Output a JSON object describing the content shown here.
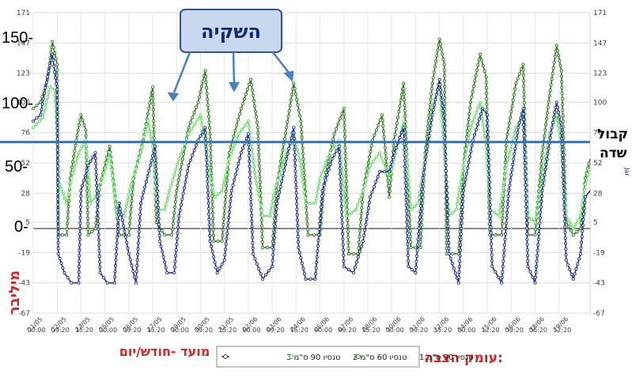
{
  "callout": {
    "text": "השקיה"
  },
  "field_capacity": {
    "line1": "קבול",
    "line2": "שדה",
    "value": 68.5,
    "color": "#3c73b0"
  },
  "annotations": {
    "unit_label": "מיליבר",
    "time_label": "מועד -חודש/יום",
    "depth_label": "עומק הצבה:"
  },
  "big_ticks": [
    "150-",
    "100-",
    "50-",
    "0-"
  ],
  "right_axis_cut": "Jar",
  "chart_data": {
    "type": "line",
    "title": "",
    "xlabel": "מועד -חודש/יום",
    "ylabel": "מיליבר",
    "ylim": [
      -67,
      171
    ],
    "y_ticks": [
      171,
      147,
      123,
      100,
      76,
      52,
      28,
      5,
      -19,
      -43,
      -67
    ],
    "x_tick_labels": [
      [
        "21/05",
        "00:00"
      ],
      [
        "22/05",
        "09:20"
      ],
      [
        "23/05",
        "15:20"
      ],
      [
        "25/05",
        "00:00"
      ],
      [
        "26/05",
        "09:20"
      ],
      [
        "27/05",
        "15:20"
      ],
      [
        "29/05",
        "00:00"
      ],
      [
        "30/05",
        "09:20"
      ],
      [
        "31/05",
        "15:20"
      ],
      [
        "02/06",
        "00:00"
      ],
      [
        "03/06",
        "09:20"
      ],
      [
        "04/06",
        "15:20"
      ],
      [
        "06/06",
        "00:00"
      ],
      [
        "07/06",
        "09:20"
      ],
      [
        "08/06",
        "15:20"
      ],
      [
        "10/06",
        "00:00"
      ],
      [
        "11/06",
        "09:20"
      ],
      [
        "12/06",
        "15:20"
      ],
      [
        "14/06",
        "00:00"
      ],
      [
        "15/06",
        "12:20"
      ],
      [
        "16/06",
        "09:20"
      ],
      [
        "18/06",
        "06:20"
      ],
      [
        "19/06",
        "12:20"
      ]
    ],
    "x_index_range": [
      0,
      22
    ],
    "series": [
      {
        "name": "טנסיו 30 ס\"מ 1",
        "color": "#2e7d1e",
        "points": [
          [
            0,
            95
          ],
          [
            0.3,
            100
          ],
          [
            0.6,
            118
          ],
          [
            0.8,
            148
          ],
          [
            1.0,
            130
          ],
          [
            1.05,
            -5
          ],
          [
            1.4,
            -5
          ],
          [
            1.55,
            40
          ],
          [
            1.8,
            70
          ],
          [
            2.0,
            90
          ],
          [
            2.2,
            78
          ],
          [
            2.3,
            -5
          ],
          [
            2.6,
            0
          ],
          [
            2.8,
            35
          ],
          [
            3.2,
            65
          ],
          [
            3.6,
            -5
          ],
          [
            4.0,
            -5
          ],
          [
            4.2,
            40
          ],
          [
            4.6,
            70
          ],
          [
            5.0,
            112
          ],
          [
            5.15,
            5
          ],
          [
            5.5,
            -5
          ],
          [
            5.8,
            -5
          ],
          [
            6.0,
            30
          ],
          [
            6.5,
            80
          ],
          [
            6.9,
            100
          ],
          [
            7.2,
            125
          ],
          [
            7.4,
            75
          ],
          [
            7.55,
            -10
          ],
          [
            7.9,
            -10
          ],
          [
            8.2,
            60
          ],
          [
            8.7,
            95
          ],
          [
            9.1,
            118
          ],
          [
            9.4,
            80
          ],
          [
            9.6,
            -15
          ],
          [
            10.0,
            -15
          ],
          [
            10.2,
            35
          ],
          [
            10.6,
            80
          ],
          [
            10.9,
            115
          ],
          [
            11.2,
            85
          ],
          [
            11.5,
            -5
          ],
          [
            12.0,
            -5
          ],
          [
            12.2,
            40
          ],
          [
            12.6,
            75
          ],
          [
            13.0,
            95
          ],
          [
            13.2,
            -20
          ],
          [
            13.6,
            -20
          ],
          [
            13.8,
            30
          ],
          [
            14.2,
            70
          ],
          [
            14.6,
            90
          ],
          [
            14.9,
            25
          ],
          [
            15.1,
            70
          ],
          [
            15.5,
            115
          ],
          [
            15.8,
            -15
          ],
          [
            16.2,
            -15
          ],
          [
            16.4,
            60
          ],
          [
            16.7,
            115
          ],
          [
            17.0,
            150
          ],
          [
            17.2,
            130
          ],
          [
            17.3,
            -20
          ],
          [
            17.8,
            -20
          ],
          [
            18.0,
            50
          ],
          [
            18.3,
            100
          ],
          [
            18.7,
            138
          ],
          [
            18.95,
            120
          ],
          [
            19.1,
            -5
          ],
          [
            19.6,
            -5
          ],
          [
            19.8,
            70
          ],
          [
            20.2,
            115
          ],
          [
            20.5,
            130
          ],
          [
            20.7,
            -5
          ],
          [
            21.0,
            -5
          ],
          [
            21.3,
            60
          ],
          [
            21.6,
            105
          ],
          [
            21.9,
            145
          ],
          [
            22.1,
            125
          ],
          [
            22.3,
            5
          ],
          [
            22.6,
            -5
          ],
          [
            22.9,
            0
          ],
          [
            23.1,
            40
          ],
          [
            23.3,
            55
          ]
        ]
      },
      {
        "name": "טנסיו 60 ס\"מ 2",
        "color": "#5ee05e",
        "points": [
          [
            0,
            80
          ],
          [
            0.4,
            88
          ],
          [
            0.7,
            112
          ],
          [
            0.9,
            110
          ],
          [
            1.1,
            35
          ],
          [
            1.4,
            20
          ],
          [
            1.6,
            40
          ],
          [
            1.9,
            60
          ],
          [
            2.2,
            70
          ],
          [
            2.4,
            20
          ],
          [
            2.6,
            25
          ],
          [
            2.9,
            40
          ],
          [
            3.2,
            60
          ],
          [
            3.5,
            10
          ],
          [
            3.8,
            10
          ],
          [
            4.1,
            35
          ],
          [
            4.5,
            60
          ],
          [
            4.8,
            85
          ],
          [
            5.0,
            65
          ],
          [
            5.2,
            15
          ],
          [
            5.5,
            15
          ],
          [
            5.7,
            30
          ],
          [
            6.1,
            55
          ],
          [
            6.5,
            75
          ],
          [
            7.0,
            90
          ],
          [
            7.4,
            40
          ],
          [
            7.6,
            25
          ],
          [
            7.9,
            30
          ],
          [
            8.2,
            55
          ],
          [
            8.6,
            75
          ],
          [
            9.0,
            85
          ],
          [
            9.3,
            40
          ],
          [
            9.6,
            10
          ],
          [
            9.9,
            10
          ],
          [
            10.1,
            30
          ],
          [
            10.5,
            55
          ],
          [
            10.9,
            75
          ],
          [
            11.2,
            50
          ],
          [
            11.4,
            20
          ],
          [
            11.8,
            20
          ],
          [
            12.0,
            40
          ],
          [
            12.4,
            60
          ],
          [
            12.8,
            70
          ],
          [
            13.1,
            10
          ],
          [
            13.5,
            15
          ],
          [
            13.8,
            30
          ],
          [
            14.1,
            50
          ],
          [
            14.5,
            60
          ],
          [
            14.9,
            40
          ],
          [
            15.1,
            55
          ],
          [
            15.5,
            85
          ],
          [
            15.8,
            15
          ],
          [
            16.1,
            20
          ],
          [
            16.4,
            55
          ],
          [
            16.7,
            95
          ],
          [
            17.0,
            115
          ],
          [
            17.2,
            60
          ],
          [
            17.4,
            10
          ],
          [
            17.7,
            15
          ],
          [
            18.0,
            50
          ],
          [
            18.3,
            80
          ],
          [
            18.7,
            100
          ],
          [
            18.95,
            65
          ],
          [
            19.1,
            15
          ],
          [
            19.5,
            10
          ],
          [
            19.8,
            50
          ],
          [
            20.2,
            80
          ],
          [
            20.5,
            90
          ],
          [
            20.7,
            10
          ],
          [
            21.0,
            5
          ],
          [
            21.3,
            40
          ],
          [
            21.6,
            75
          ],
          [
            21.9,
            90
          ],
          [
            22.1,
            65
          ],
          [
            22.3,
            10
          ],
          [
            22.6,
            0
          ],
          [
            22.9,
            10
          ],
          [
            23.1,
            35
          ],
          [
            23.3,
            50
          ]
        ]
      },
      {
        "name": "טנסיו 90 ס\"מ 3",
        "color": "#1f2f9a",
        "points": [
          [
            0,
            85
          ],
          [
            0.3,
            90
          ],
          [
            0.6,
            120
          ],
          [
            0.8,
            138
          ],
          [
            1.0,
            110
          ],
          [
            1.05,
            -20
          ],
          [
            1.3,
            -35
          ],
          [
            1.6,
            -43
          ],
          [
            1.9,
            -43
          ],
          [
            2.0,
            30
          ],
          [
            2.3,
            50
          ],
          [
            2.6,
            60
          ],
          [
            2.8,
            -35
          ],
          [
            3.1,
            -43
          ],
          [
            3.4,
            -43
          ],
          [
            3.6,
            20
          ],
          [
            4.0,
            -20
          ],
          [
            4.3,
            -43
          ],
          [
            4.5,
            20
          ],
          [
            4.9,
            50
          ],
          [
            5.1,
            65
          ],
          [
            5.3,
            -10
          ],
          [
            5.6,
            -35
          ],
          [
            5.9,
            -35
          ],
          [
            6.1,
            10
          ],
          [
            6.5,
            50
          ],
          [
            6.9,
            70
          ],
          [
            7.2,
            80
          ],
          [
            7.4,
            -10
          ],
          [
            7.7,
            -35
          ],
          [
            8.0,
            -25
          ],
          [
            8.3,
            30
          ],
          [
            8.7,
            60
          ],
          [
            9.0,
            75
          ],
          [
            9.2,
            -20
          ],
          [
            9.6,
            -40
          ],
          [
            10.0,
            -30
          ],
          [
            10.2,
            20
          ],
          [
            10.6,
            55
          ],
          [
            10.9,
            80
          ],
          [
            11.1,
            -15
          ],
          [
            11.4,
            -40
          ],
          [
            11.8,
            -40
          ],
          [
            12.1,
            30
          ],
          [
            12.5,
            55
          ],
          [
            12.8,
            65
          ],
          [
            13.0,
            -30
          ],
          [
            13.4,
            -35
          ],
          [
            13.8,
            -10
          ],
          [
            14.1,
            25
          ],
          [
            14.5,
            45
          ],
          [
            14.9,
            45
          ],
          [
            15.1,
            60
          ],
          [
            15.5,
            80
          ],
          [
            15.7,
            -30
          ],
          [
            16.0,
            -35
          ],
          [
            16.3,
            40
          ],
          [
            16.7,
            90
          ],
          [
            17.0,
            118
          ],
          [
            17.2,
            85
          ],
          [
            17.4,
            -20
          ],
          [
            17.8,
            -43
          ],
          [
            18.0,
            30
          ],
          [
            18.4,
            70
          ],
          [
            18.8,
            95
          ],
          [
            19.0,
            90
          ],
          [
            19.2,
            -30
          ],
          [
            19.6,
            -43
          ],
          [
            19.9,
            30
          ],
          [
            20.3,
            80
          ],
          [
            20.5,
            95
          ],
          [
            20.7,
            -30
          ],
          [
            21.0,
            -43
          ],
          [
            21.3,
            30
          ],
          [
            21.7,
            80
          ],
          [
            21.9,
            100
          ],
          [
            22.1,
            80
          ],
          [
            22.3,
            -25
          ],
          [
            22.6,
            -40
          ],
          [
            22.9,
            -20
          ],
          [
            23.1,
            25
          ],
          [
            23.3,
            30
          ]
        ]
      }
    ]
  }
}
